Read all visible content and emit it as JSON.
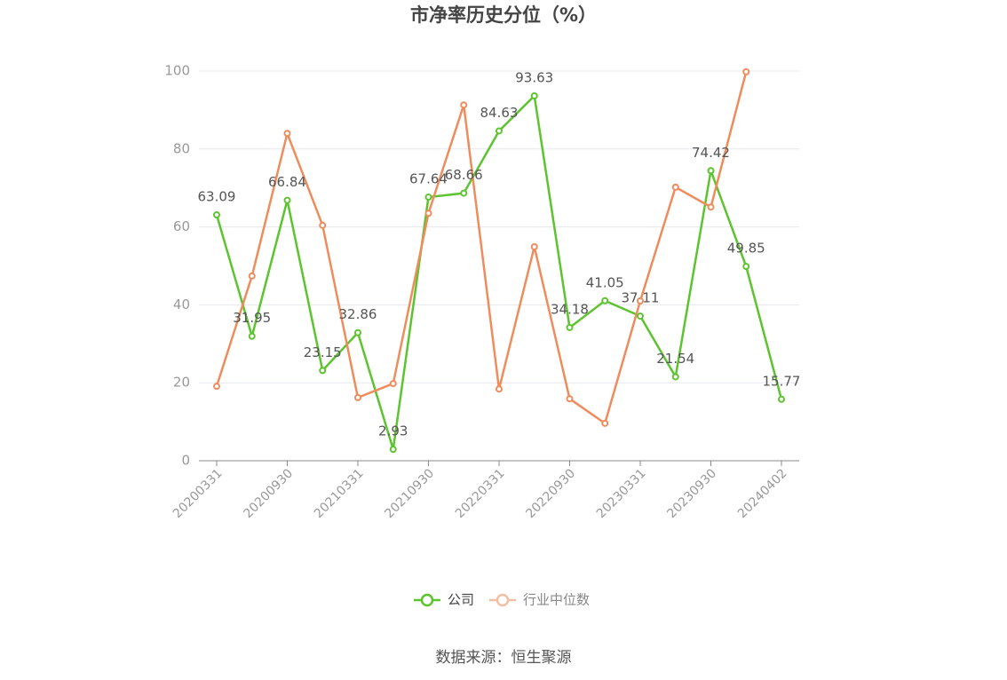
{
  "chart_data": {
    "type": "line",
    "title": "市净率历史分位（%）",
    "categories": [
      "20200331",
      null,
      "20200930",
      null,
      "20210331",
      null,
      "20210930",
      null,
      "20220331",
      null,
      "20220930",
      null,
      "20230331",
      null,
      "20230930",
      null,
      "20240402"
    ],
    "series": [
      {
        "name": "公司",
        "color": "#5cc42e",
        "values": [
          63.09,
          31.95,
          66.84,
          23.15,
          32.86,
          2.93,
          67.64,
          68.66,
          84.63,
          93.63,
          34.18,
          41.05,
          37.11,
          21.54,
          74.42,
          49.85,
          15.77
        ]
      },
      {
        "name": "行业中位数",
        "color": "#ef8c5c",
        "values": [
          19.1,
          47.4,
          84,
          60.4,
          16.2,
          19.8,
          63.5,
          91.3,
          18.4,
          54.9,
          15.9,
          9.6,
          41,
          70.2,
          65.1,
          99.8,
          null
        ]
      }
    ],
    "ylim": [
      0,
      100
    ],
    "yticks": [
      0,
      20,
      40,
      60,
      80,
      100
    ],
    "grid": true,
    "source": "数据来源：恒生聚源"
  }
}
